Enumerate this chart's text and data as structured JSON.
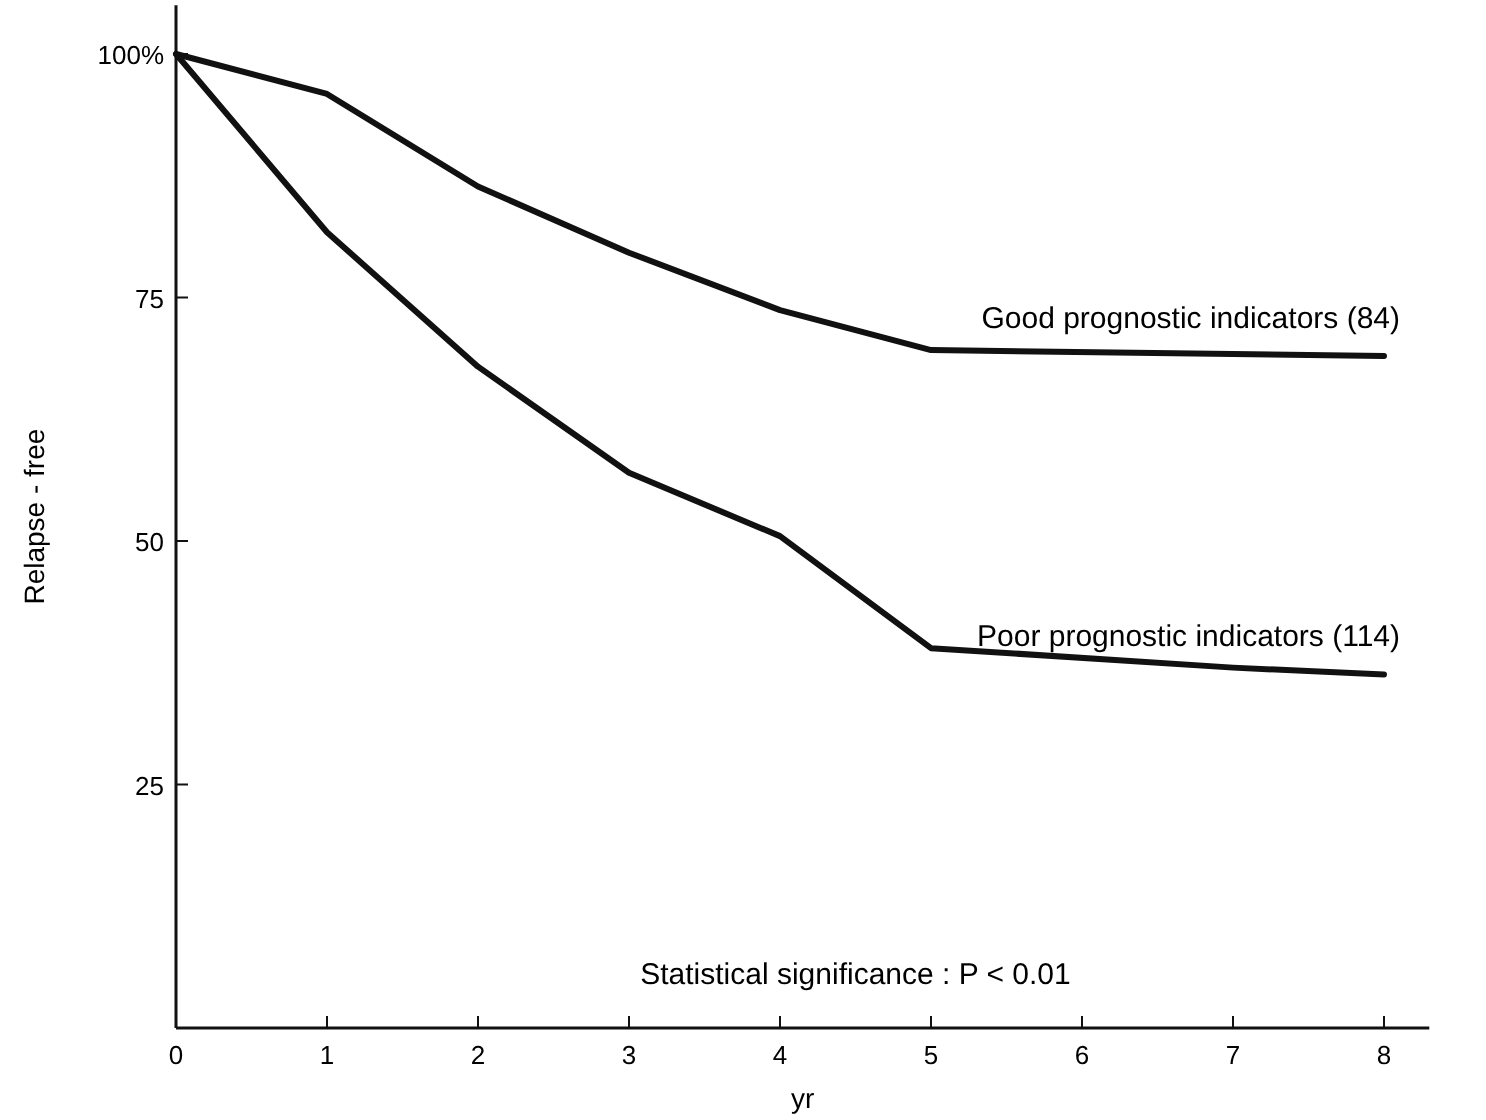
{
  "chart_data": {
    "type": "line",
    "xlabel": "yr",
    "ylabel": "Relapse - free",
    "xlim": [
      0,
      8.3
    ],
    "ylim": [
      0,
      105
    ],
    "xticks": [
      0,
      1,
      2,
      3,
      4,
      5,
      6,
      7,
      8
    ],
    "yticks": [
      25,
      50,
      75,
      {
        "value": 100,
        "label": "100%"
      }
    ],
    "grid": false,
    "marker": "none",
    "line_style": "solid",
    "series": [
      {
        "name": "Good prognostic indicators (84)",
        "color": "#111111",
        "x": [
          0,
          1,
          2,
          3,
          4,
          5,
          8
        ],
        "values": [
          100,
          95.9,
          86.4,
          79.6,
          73.7,
          69.6,
          69
        ]
      },
      {
        "name": "Poor prognostic indicators (114)",
        "color": "#111111",
        "x": [
          0,
          1,
          2,
          3,
          4,
          5,
          7,
          8
        ],
        "values": [
          100,
          81.7,
          67.9,
          57,
          50.5,
          39,
          37,
          36.3
        ]
      }
    ],
    "annotations": [
      "Statistical significance : P < 0.01"
    ]
  }
}
